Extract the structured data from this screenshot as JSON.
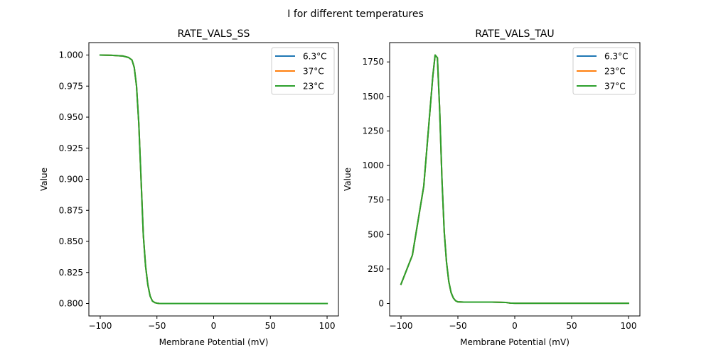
{
  "figure": {
    "suptitle": "I for different temperatures"
  },
  "chart_data": [
    {
      "type": "line",
      "title": "RATE_VALS_SS",
      "xlabel": "Membrane Potential (mV)",
      "ylabel": "Value",
      "xlim": [
        -110,
        110
      ],
      "ylim": [
        0.79,
        1.01
      ],
      "xticks": [
        -100,
        -50,
        0,
        50,
        100
      ],
      "xtick_labels": [
        "−100",
        "−50",
        "0",
        "50",
        "100"
      ],
      "yticks": [
        0.8,
        0.825,
        0.85,
        0.875,
        0.9,
        0.925,
        0.95,
        0.975,
        1.0
      ],
      "ytick_labels": [
        "0.800",
        "0.825",
        "0.850",
        "0.875",
        "0.900",
        "0.925",
        "0.950",
        "0.975",
        "1.000"
      ],
      "legend_position": "upper right",
      "x": [
        -100,
        -90,
        -80,
        -75,
        -72,
        -70,
        -68,
        -66,
        -64,
        -62,
        -60,
        -58,
        -56,
        -54,
        -52,
        -50,
        -48,
        -45,
        -40,
        0,
        50,
        100
      ],
      "series": [
        {
          "name": "6.3°C",
          "color": "#1f77b4",
          "values": [
            1.0,
            0.9998,
            0.9992,
            0.998,
            0.996,
            0.99,
            0.975,
            0.945,
            0.9,
            0.855,
            0.83,
            0.815,
            0.806,
            0.802,
            0.8008,
            0.8003,
            0.8001,
            0.8,
            0.8,
            0.8,
            0.8,
            0.8
          ]
        },
        {
          "name": "37°C",
          "color": "#ff7f0e",
          "values": [
            1.0,
            0.9998,
            0.9992,
            0.998,
            0.996,
            0.99,
            0.975,
            0.945,
            0.9,
            0.855,
            0.83,
            0.815,
            0.806,
            0.802,
            0.8008,
            0.8003,
            0.8001,
            0.8,
            0.8,
            0.8,
            0.8,
            0.8
          ]
        },
        {
          "name": "23°C",
          "color": "#2ca02c",
          "values": [
            1.0,
            0.9998,
            0.9992,
            0.998,
            0.996,
            0.99,
            0.975,
            0.945,
            0.9,
            0.855,
            0.83,
            0.815,
            0.806,
            0.802,
            0.8008,
            0.8003,
            0.8001,
            0.8,
            0.8,
            0.8,
            0.8,
            0.8
          ]
        }
      ]
    },
    {
      "type": "line",
      "title": "RATE_VALS_TAU",
      "xlabel": "Membrane Potential (mV)",
      "ylabel": "Value",
      "xlim": [
        -110,
        110
      ],
      "ylim": [
        -90,
        1890
      ],
      "xticks": [
        -100,
        -50,
        0,
        50,
        100
      ],
      "xtick_labels": [
        "−100",
        "−50",
        "0",
        "50",
        "100"
      ],
      "yticks": [
        0,
        250,
        500,
        750,
        1000,
        1250,
        1500,
        1750
      ],
      "ytick_labels": [
        "0",
        "250",
        "500",
        "750",
        "1000",
        "1250",
        "1500",
        "1750"
      ],
      "legend_position": "upper right",
      "x": [
        -100,
        -90,
        -80,
        -75,
        -72,
        -70,
        -68,
        -66,
        -64,
        -62,
        -60,
        -58,
        -56,
        -54,
        -52,
        -50,
        -45,
        -20,
        -8,
        -4,
        0,
        50,
        100
      ],
      "series": [
        {
          "name": "6.3°C",
          "color": "#1f77b4",
          "values": [
            140,
            350,
            850,
            1350,
            1650,
            1800,
            1780,
            1400,
            900,
            520,
            300,
            160,
            80,
            40,
            20,
            12,
            10,
            10,
            8,
            3,
            2,
            2,
            2
          ]
        },
        {
          "name": "23°C",
          "color": "#ff7f0e",
          "values": [
            140,
            350,
            850,
            1350,
            1650,
            1800,
            1780,
            1400,
            900,
            520,
            300,
            160,
            80,
            40,
            20,
            12,
            10,
            10,
            8,
            3,
            2,
            2,
            2
          ]
        },
        {
          "name": "37°C",
          "color": "#2ca02c",
          "values": [
            140,
            350,
            850,
            1350,
            1650,
            1800,
            1780,
            1400,
            900,
            520,
            300,
            160,
            80,
            40,
            20,
            12,
            10,
            10,
            8,
            3,
            2,
            2,
            2
          ]
        }
      ]
    }
  ]
}
